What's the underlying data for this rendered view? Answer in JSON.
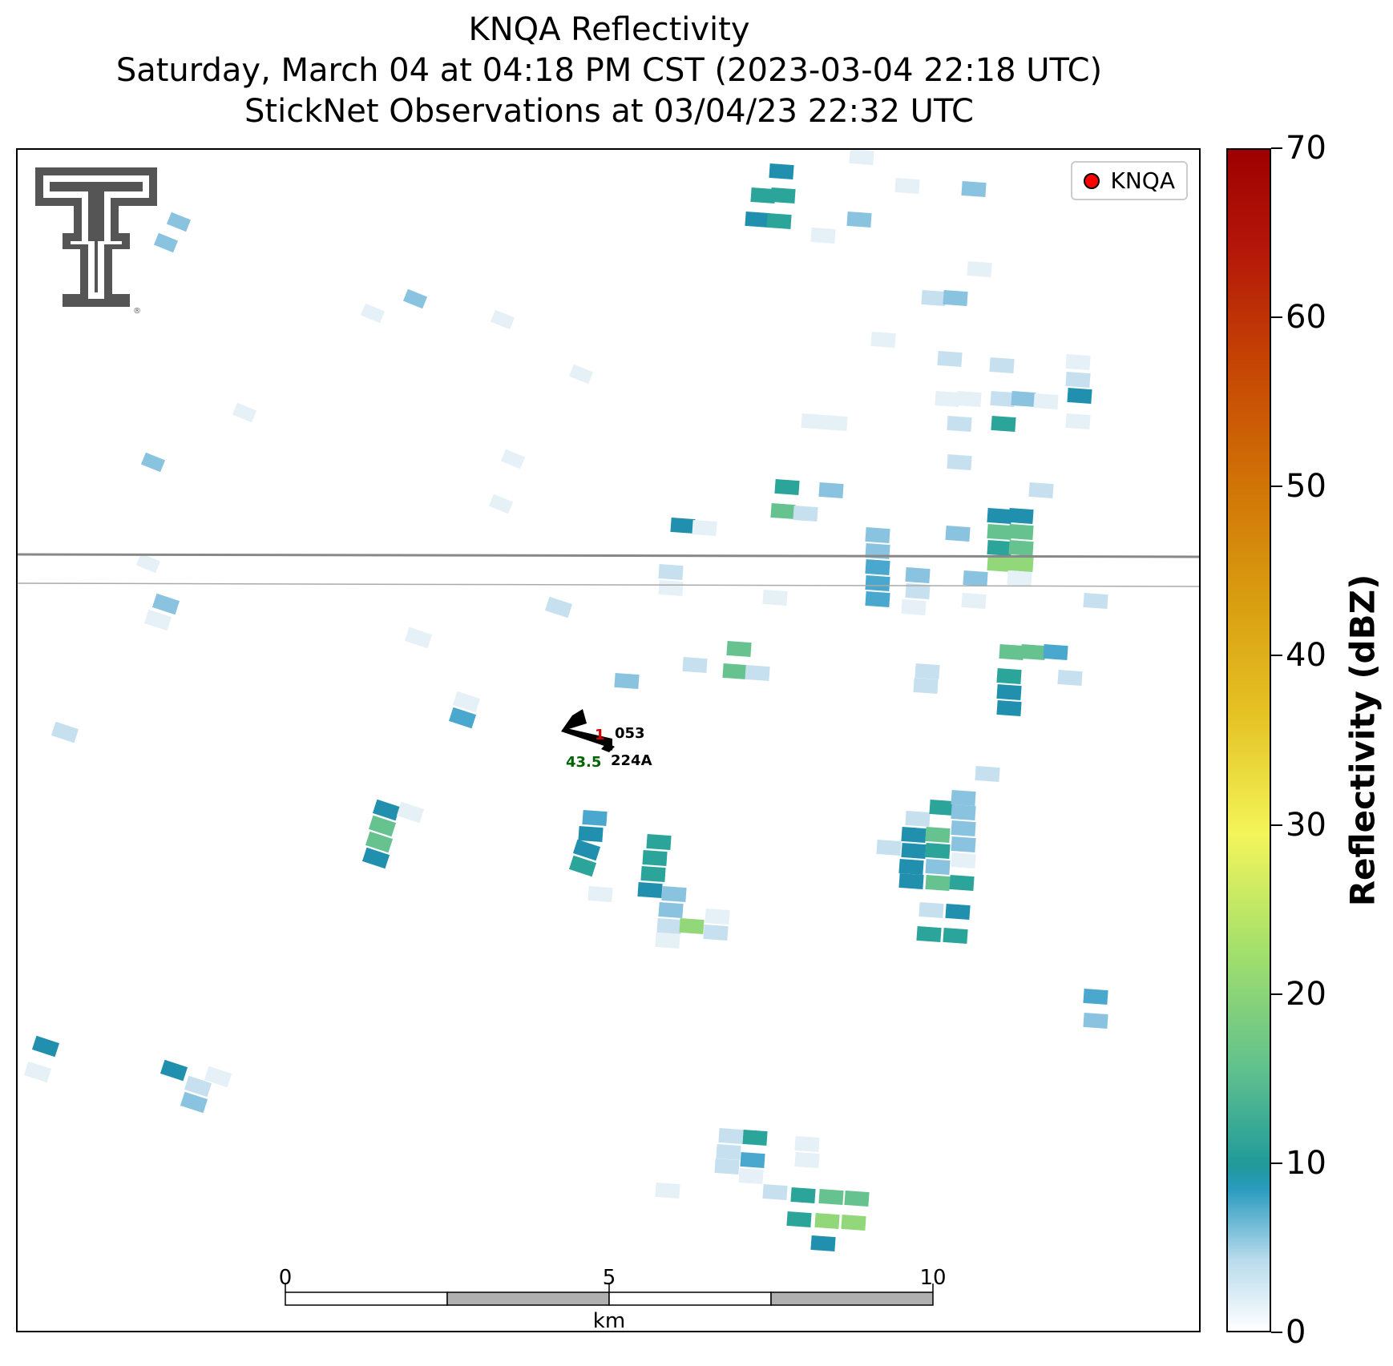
{
  "title_lines": [
    "KNQA Reflectivity",
    "Saturday, March 04 at 04:18 PM CST (2023-03-04 22:18 UTC)",
    "StickNet Observations at 03/04/23 22:32 UTC"
  ],
  "legend": {
    "label": "KNQA",
    "marker_color": "#ff0000"
  },
  "colorbar": {
    "title": "Reflectivity (dBZ)",
    "min": 0,
    "max": 70,
    "ticks": [
      "0",
      "10",
      "20",
      "30",
      "40",
      "50",
      "60",
      "70"
    ]
  },
  "scale_bar": {
    "unit": "km",
    "labels": [
      "0",
      "5",
      "10"
    ]
  },
  "station": {
    "id": "224A",
    "station_number": "053",
    "value_red": "1",
    "value_green": "43.5",
    "red_color": "#d40000",
    "green_color": "#006400"
  },
  "logo": {
    "name": "texas-tech-double-t-logo",
    "color": "#555555"
  }
}
